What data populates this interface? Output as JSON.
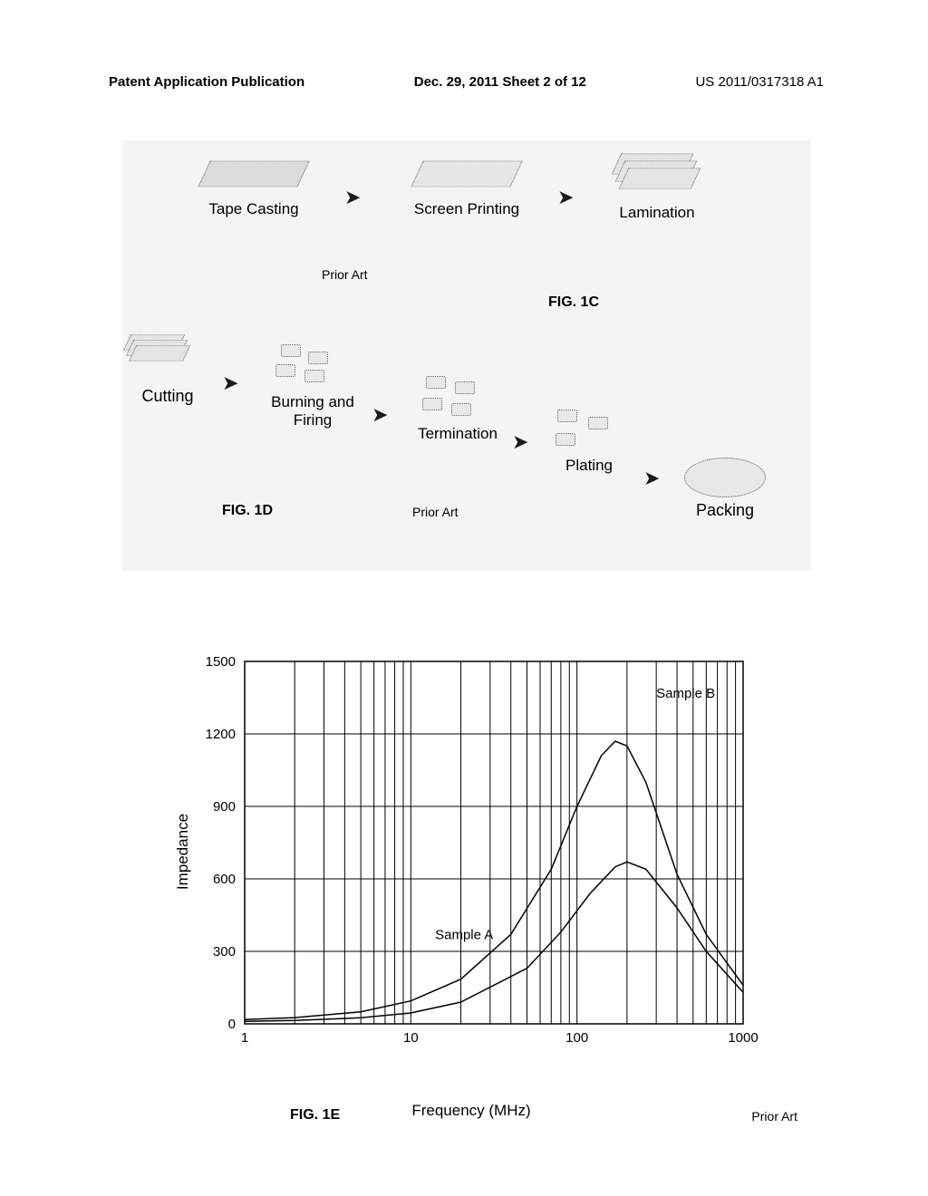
{
  "header": {
    "pub": "Patent Application Publication",
    "date": "Dec. 29, 2011  Sheet 2 of 12",
    "patno": "US 2011/0317318 A1"
  },
  "fig1c": {
    "label": "FIG. 1C",
    "priorart": "Prior Art",
    "steps": {
      "tape": "Tape Casting",
      "screen": "Screen Printing",
      "lam": "Lamination"
    }
  },
  "fig1d": {
    "label": "FIG. 1D",
    "priorart": "Prior Art",
    "steps": {
      "cut": "Cutting",
      "burn": "Burning and\nFiring",
      "term": "Termination",
      "plate": "Plating",
      "pack": "Packing"
    }
  },
  "chart": {
    "type": "line",
    "xlabel": "Frequency (MHz)",
    "ylabel": "Impedance",
    "figlabel": "FIG. 1E",
    "priorart": "Prior Art",
    "xscale": "log",
    "xlim": [
      1,
      1000
    ],
    "ylim": [
      0,
      1500
    ],
    "ytick_step": 300,
    "yticks": [
      0,
      300,
      600,
      900,
      1200,
      1500
    ],
    "xticks": [
      1,
      10,
      100,
      1000
    ],
    "background_color": "#ffffff",
    "grid_color": "#000000",
    "axis_color": "#000000",
    "line_color": "#000000",
    "line_width": 1.5,
    "label_fontsize": 17,
    "tick_fontsize": 15,
    "samples": {
      "A": {
        "label": "Sample A",
        "label_pos": {
          "x_mhz": 14,
          "y_imp": 350
        },
        "data": [
          {
            "x": 1,
            "y": 10
          },
          {
            "x": 2,
            "y": 14
          },
          {
            "x": 5,
            "y": 25
          },
          {
            "x": 10,
            "y": 45
          },
          {
            "x": 20,
            "y": 90
          },
          {
            "x": 50,
            "y": 230
          },
          {
            "x": 80,
            "y": 380
          },
          {
            "x": 120,
            "y": 540
          },
          {
            "x": 170,
            "y": 650
          },
          {
            "x": 200,
            "y": 670
          },
          {
            "x": 260,
            "y": 640
          },
          {
            "x": 400,
            "y": 480
          },
          {
            "x": 600,
            "y": 300
          },
          {
            "x": 1000,
            "y": 130
          }
        ]
      },
      "B": {
        "label": "Sample B",
        "label_pos": {
          "x_mhz": 300,
          "y_imp": 1350
        },
        "data": [
          {
            "x": 1,
            "y": 18
          },
          {
            "x": 2,
            "y": 26
          },
          {
            "x": 5,
            "y": 50
          },
          {
            "x": 10,
            "y": 95
          },
          {
            "x": 20,
            "y": 185
          },
          {
            "x": 40,
            "y": 370
          },
          {
            "x": 70,
            "y": 640
          },
          {
            "x": 100,
            "y": 900
          },
          {
            "x": 140,
            "y": 1110
          },
          {
            "x": 170,
            "y": 1170
          },
          {
            "x": 200,
            "y": 1150
          },
          {
            "x": 260,
            "y": 1000
          },
          {
            "x": 400,
            "y": 620
          },
          {
            "x": 600,
            "y": 370
          },
          {
            "x": 1000,
            "y": 160
          }
        ]
      }
    }
  }
}
